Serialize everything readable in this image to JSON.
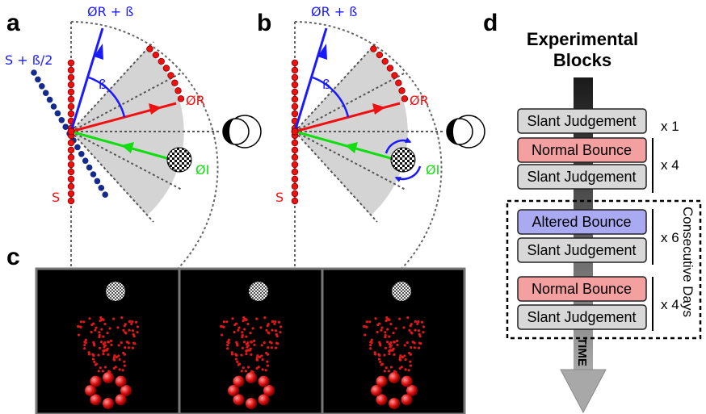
{
  "panels": {
    "a": {
      "letter": "a",
      "label_reflected_plus_beta": "ØR + ß",
      "label_beta": "ß",
      "label_reflected": "ØR",
      "label_incident": "ØI",
      "label_surface": "S",
      "label_surface_tilted": "S + ß/2"
    },
    "b": {
      "letter": "b",
      "label_reflected_plus_beta": "ØR + ß",
      "label_beta": "ß",
      "label_reflected": "ØR",
      "label_incident": "ØI",
      "label_surface": "S"
    },
    "c": {
      "letter": "c",
      "frame_count": 3
    },
    "d": {
      "letter": "d",
      "title_line1": "Experimental",
      "title_line2": "Blocks",
      "arrow_label": "TIME",
      "bracket_label": "Consecutive Days",
      "blocks": [
        {
          "label": "Slant Judgement",
          "type": "slant"
        },
        {
          "label": "Normal Bounce",
          "type": "normal"
        },
        {
          "label": "Slant Judgement",
          "type": "slant"
        },
        {
          "label": "Altered Bounce",
          "type": "altered"
        },
        {
          "label": "Slant Judgement",
          "type": "slant"
        },
        {
          "label": "Normal Bounce",
          "type": "normal"
        },
        {
          "label": "Slant Judgement",
          "type": "slant"
        }
      ],
      "repeats": [
        "x 1",
        "x 4",
        "x 6",
        "x 4"
      ]
    }
  },
  "colors": {
    "blue": "#1a1aff",
    "red": "#ee1111",
    "green": "#11dd11",
    "navy": "#142a8c",
    "slant_box": "#d8d8d8",
    "normal_box": "#f4a0a0",
    "altered_box": "#aaaaf2",
    "wedge": "#d4d4d4"
  }
}
